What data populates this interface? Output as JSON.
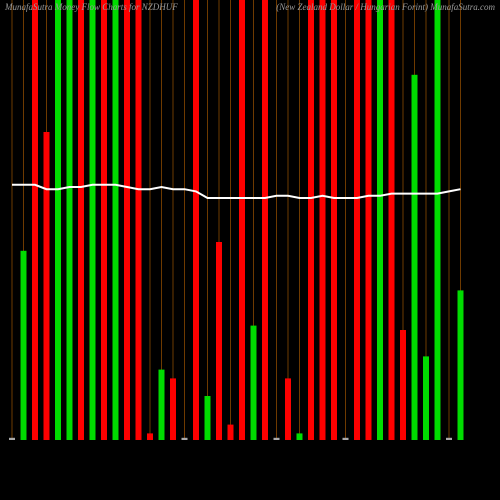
{
  "chart_data": {
    "type": "bar",
    "title": "MunafaSutra Money Flow Charts for NZDHUF",
    "subtitle": "(New Zealand Dollar / Hungarian Forint) MunafaSutra.com",
    "categories": [
      null,
      null,
      null,
      null,
      null,
      null,
      null,
      null,
      null,
      null,
      null,
      null,
      null,
      null,
      null,
      null,
      null,
      null,
      null,
      null,
      null,
      null,
      null,
      null,
      null,
      null,
      null,
      null,
      null,
      null,
      null,
      null,
      null,
      null,
      null,
      null,
      null,
      null,
      null,
      null
    ],
    "values": [
      0.5,
      43,
      100,
      70,
      100,
      100,
      100,
      100,
      100,
      100,
      100,
      100,
      1.5,
      16,
      14,
      0.5,
      100,
      10,
      45,
      3.5,
      100,
      26,
      100,
      0.5,
      14,
      1.5,
      100,
      100,
      100,
      0.5,
      100,
      100,
      100,
      100,
      25,
      83,
      19,
      100,
      0.5,
      34
    ],
    "colors": [
      "#aaaaaa",
      "#00dd00",
      "#ff0000",
      "#ff0000",
      "#00dd00",
      "#00dd00",
      "#ff0000",
      "#00dd00",
      "#ff0000",
      "#00dd00",
      "#ff0000",
      "#ff0000",
      "#ff0000",
      "#00dd00",
      "#ff0000",
      "#aaaaaa",
      "#ff0000",
      "#00dd00",
      "#ff0000",
      "#ff0000",
      "#ff0000",
      "#00dd00",
      "#ff0000",
      "#aaaaaa",
      "#ff0000",
      "#00dd00",
      "#ff0000",
      "#ff0000",
      "#ff0000",
      "#aaaaaa",
      "#ff0000",
      "#ff0000",
      "#00dd00",
      "#ff0000",
      "#ff0000",
      "#00dd00",
      "#00dd00",
      "#00dd00",
      "#aaaaaa",
      "#00dd00"
    ],
    "price_values": [
      58,
      58,
      58,
      57,
      57,
      57.5,
      57.5,
      58,
      58,
      58,
      57.5,
      57,
      57,
      57.5,
      57,
      57,
      56.5,
      55,
      55,
      55,
      55,
      55,
      55,
      55.5,
      55.5,
      55,
      55,
      55.5,
      55,
      55,
      55,
      55.5,
      55.5,
      56,
      56,
      56,
      56,
      56,
      56.5,
      57
    ],
    "line_color": "#ffffff",
    "ylim": [
      0,
      100
    ],
    "grid_color": "#8a4a00"
  }
}
